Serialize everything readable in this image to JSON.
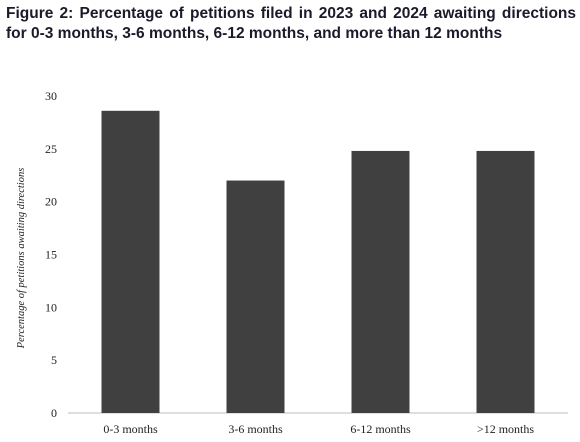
{
  "chart_data": {
    "type": "bar",
    "title": "Figure 2: Percentage of petitions filed in 2023 and 2024 awaiting directions for 0-3 months, 3-6 months, 6-12 months, and more than 12 months",
    "xlabel": "",
    "ylabel": "Percentage of petitions awaiting directions",
    "categories": [
      "0-3 months",
      "3-6 months",
      "6-12 months",
      ">12 months"
    ],
    "values": [
      28.6,
      22.0,
      24.8,
      24.8
    ],
    "ylim": [
      0,
      30
    ],
    "yticks": [
      "0",
      "5",
      "10",
      "15",
      "20",
      "25",
      "30"
    ],
    "grid": false,
    "bar_color": "#404040"
  }
}
